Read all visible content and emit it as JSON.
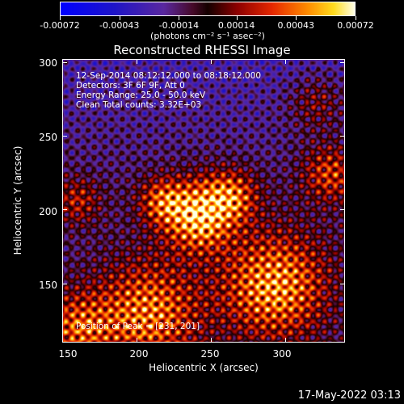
{
  "colorbar": {
    "labels": [
      "-0.00072",
      "-0.00043",
      "-0.00014",
      "0.00014",
      "0.00043",
      "0.00072"
    ],
    "units": "(photons cm⁻² s⁻¹ asec⁻²)",
    "range": [
      -0.00072,
      0.00072
    ]
  },
  "plot": {
    "title": "Reconstructed RHESSI Image",
    "info_lines": [
      "12-Sep-2014 08:12:12.000 to 08:18:12.000",
      "Detectors: 3F 6F 9F, Att 0",
      "Energy Range: 25.0 - 50.0 keV",
      "Clean     Total counts: 3.32E+03"
    ],
    "peak_text": "Position of Peak = [231, 201]",
    "x_ticks": [
      "150",
      "200",
      "250",
      "300"
    ],
    "y_ticks": [
      "300",
      "250",
      "200",
      "150"
    ],
    "x_label": "Heliocentric X (arcsec)",
    "y_label": "Heliocentric Y (arcsec)",
    "x_range": [
      150,
      340
    ],
    "y_range": [
      110,
      302
    ]
  },
  "footer": {
    "datestamp": "17-May-2022 03:13"
  }
}
